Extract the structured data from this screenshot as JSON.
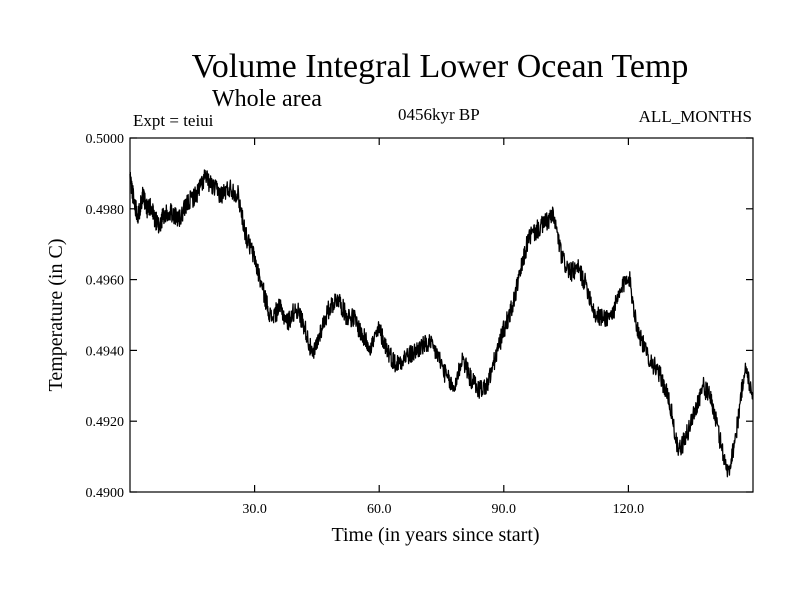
{
  "chart_data": {
    "type": "line",
    "title": "Volume Integral Lower Ocean Temp",
    "subtitle": "Whole area",
    "annotations": {
      "experiment": "Expt = teiui",
      "period": "0456kyr BP",
      "season": "ALL_MONTHS"
    },
    "xlabel": "Time (in years since start)",
    "ylabel": "Temperature (in C)",
    "xlim": [
      0,
      150
    ],
    "ylim": [
      0.49,
      0.5
    ],
    "x_ticks": [
      30,
      60,
      90,
      120
    ],
    "x_tick_labels": [
      "30.0",
      "60.0",
      "90.0",
      "120.0"
    ],
    "y_ticks": [
      0.49,
      0.492,
      0.494,
      0.496,
      0.498,
      0.5
    ],
    "y_tick_labels": [
      "0.4900",
      "0.4920",
      "0.4940",
      "0.4960",
      "0.4980",
      "0.5000"
    ],
    "grid": false,
    "series": [
      {
        "name": "Volume integral lower ocean temperature",
        "x": [
          0,
          1,
          2,
          3,
          4,
          5,
          6,
          7,
          8,
          10,
          12,
          14,
          16,
          18,
          20,
          22,
          24,
          26,
          28,
          30,
          32,
          34,
          36,
          38,
          40,
          42,
          44,
          46,
          48,
          50,
          52,
          54,
          56,
          58,
          60,
          62,
          64,
          66,
          68,
          70,
          72,
          74,
          76,
          78,
          80,
          82,
          84,
          86,
          88,
          90,
          92,
          94,
          96,
          98,
          100,
          102,
          104,
          106,
          108,
          110,
          112,
          114,
          116,
          118,
          120,
          122,
          124,
          126,
          128,
          130,
          132,
          134,
          136,
          138,
          140,
          142,
          144,
          146,
          148,
          150
        ],
        "y": [
          0.4989,
          0.4982,
          0.4978,
          0.4984,
          0.498,
          0.4981,
          0.4977,
          0.4975,
          0.4978,
          0.4979,
          0.4977,
          0.4982,
          0.4984,
          0.4989,
          0.4986,
          0.4984,
          0.4986,
          0.4984,
          0.4972,
          0.4966,
          0.4957,
          0.4949,
          0.4952,
          0.4948,
          0.4952,
          0.4947,
          0.4938,
          0.4946,
          0.4952,
          0.4955,
          0.495,
          0.4949,
          0.4944,
          0.4941,
          0.4946,
          0.494,
          0.4936,
          0.4938,
          0.4939,
          0.4941,
          0.4942,
          0.4939,
          0.4933,
          0.4929,
          0.4938,
          0.4932,
          0.4929,
          0.493,
          0.4938,
          0.4946,
          0.4952,
          0.4962,
          0.4972,
          0.4974,
          0.4976,
          0.4978,
          0.4966,
          0.4962,
          0.4963,
          0.4958,
          0.495,
          0.4949,
          0.495,
          0.4956,
          0.4962,
          0.4947,
          0.494,
          0.4936,
          0.4932,
          0.4925,
          0.4911,
          0.4916,
          0.4923,
          0.493,
          0.4926,
          0.4915,
          0.4905,
          0.4917,
          0.4935,
          0.4928
        ]
      }
    ]
  }
}
